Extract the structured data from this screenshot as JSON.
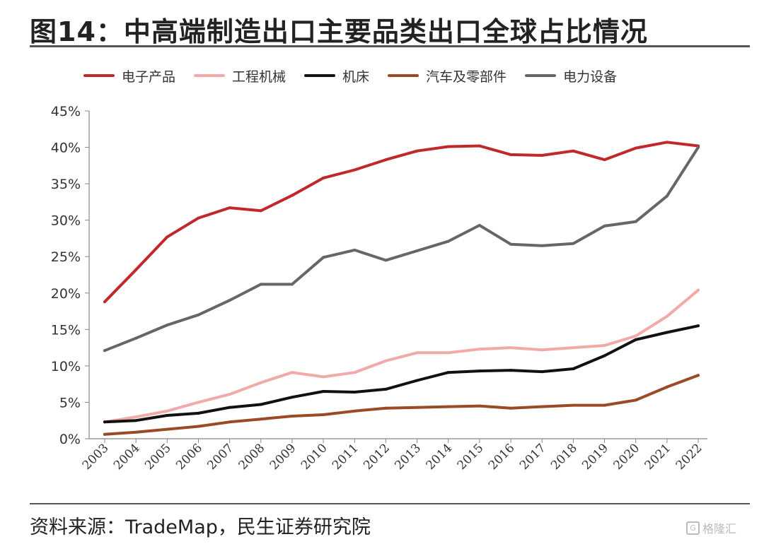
{
  "title": "图14：中高端制造出口主要品类出口全球占比情况",
  "source": "资料来源：TradeMap，民生证券研究院",
  "watermark": {
    "icon": "G",
    "text": "格隆汇"
  },
  "chart_data": {
    "type": "line",
    "x": [
      "2003",
      "2004",
      "2005",
      "2006",
      "2007",
      "2008",
      "2009",
      "2010",
      "2011",
      "2012",
      "2013",
      "2014",
      "2015",
      "2016",
      "2017",
      "2018",
      "2019",
      "2020",
      "2021",
      "2022"
    ],
    "ylim": [
      0,
      45
    ],
    "yticks": [
      "0%",
      "5%",
      "10%",
      "15%",
      "20%",
      "25%",
      "30%",
      "35%",
      "40%",
      "45%"
    ],
    "grid": false,
    "legend_position": "top",
    "series": [
      {
        "name": "电子产品",
        "color": "#c0282a",
        "values": [
          18.8,
          23.2,
          27.7,
          30.3,
          31.7,
          31.3,
          33.4,
          35.8,
          36.9,
          38.3,
          39.5,
          40.1,
          40.2,
          39.0,
          38.9,
          39.5,
          38.3,
          39.9,
          40.7,
          40.2
        ]
      },
      {
        "name": "工程机械",
        "color": "#f2aaa8",
        "values": [
          2.3,
          3.0,
          3.8,
          5.0,
          6.1,
          7.7,
          9.1,
          8.5,
          9.1,
          10.7,
          11.8,
          11.8,
          12.3,
          12.5,
          12.2,
          12.5,
          12.8,
          14.1,
          16.8,
          20.4
        ]
      },
      {
        "name": "机床",
        "color": "#111111",
        "values": [
          2.3,
          2.5,
          3.2,
          3.5,
          4.3,
          4.7,
          5.7,
          6.5,
          6.4,
          6.8,
          8.0,
          9.1,
          9.3,
          9.4,
          9.2,
          9.6,
          11.4,
          13.6,
          14.6,
          15.5
        ]
      },
      {
        "name": "汽车及零部件",
        "color": "#9a4a24",
        "values": [
          0.6,
          0.9,
          1.3,
          1.7,
          2.3,
          2.7,
          3.1,
          3.3,
          3.8,
          4.2,
          4.3,
          4.4,
          4.5,
          4.2,
          4.4,
          4.6,
          4.6,
          5.3,
          7.1,
          8.7
        ]
      },
      {
        "name": "电力设备",
        "color": "#666666",
        "values": [
          12.1,
          13.8,
          15.6,
          17.0,
          19.0,
          21.2,
          21.2,
          24.9,
          25.9,
          24.5,
          25.8,
          27.1,
          29.3,
          26.7,
          26.5,
          26.8,
          29.2,
          29.8,
          33.3,
          40.0
        ]
      }
    ]
  }
}
